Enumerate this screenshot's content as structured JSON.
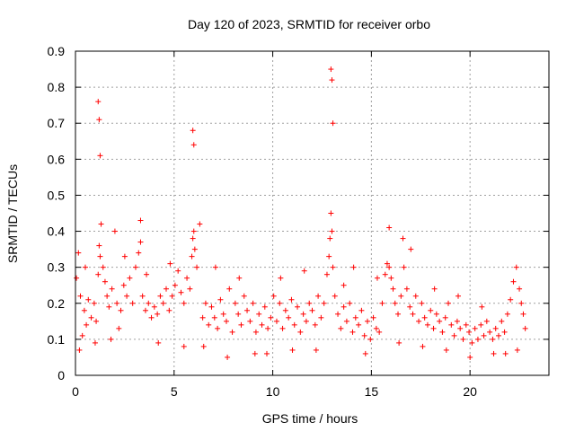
{
  "chart_data": {
    "type": "scatter",
    "title": "Day 120 of 2023, SRMTID for receiver orbo",
    "xlabel": "GPS time / hours",
    "ylabel": "SRMTID / TECUs",
    "xlim": [
      0,
      24
    ],
    "ylim": [
      0,
      0.9
    ],
    "x_ticks": [
      0,
      5,
      10,
      15,
      20
    ],
    "x_tick_labels": [
      "0",
      "5",
      "10",
      "15",
      "20"
    ],
    "y_ticks": [
      0,
      0.1,
      0.2,
      0.3,
      0.4,
      0.5,
      0.6,
      0.7,
      0.8,
      0.9
    ],
    "y_tick_labels": [
      "0",
      "0.1",
      "0.2",
      "0.3",
      "0.4",
      "0.5",
      "0.6",
      "0.7",
      "0.8",
      "0.9"
    ],
    "grid": true,
    "marker": "+",
    "color": "#ff0000",
    "series": [
      {
        "name": "SRMTID",
        "x": [
          0.05,
          0.15,
          0.25,
          0.35,
          0.45,
          0.55,
          0.65,
          0.8,
          0.95,
          1.05,
          1.15,
          1.2,
          1.25,
          1.3,
          1.4,
          1.5,
          1.6,
          1.7,
          1.85,
          2.0,
          2.1,
          2.2,
          2.3,
          2.45,
          2.6,
          2.75,
          2.9,
          3.05,
          3.2,
          3.3,
          3.4,
          3.55,
          3.7,
          3.85,
          4.0,
          4.15,
          4.3,
          4.45,
          4.6,
          4.75,
          4.9,
          5.05,
          5.2,
          5.35,
          5.5,
          5.65,
          5.8,
          5.9,
          5.95,
          6.0,
          6.05,
          6.15,
          6.3,
          6.45,
          6.6,
          6.75,
          6.9,
          7.05,
          7.2,
          7.35,
          7.5,
          7.65,
          7.8,
          7.95,
          8.1,
          8.25,
          8.4,
          8.55,
          8.7,
          8.85,
          9.0,
          9.15,
          9.3,
          9.45,
          9.6,
          9.75,
          9.9,
          10.05,
          10.2,
          10.35,
          10.5,
          10.65,
          10.8,
          10.95,
          11.1,
          11.25,
          11.4,
          11.55,
          11.7,
          11.85,
          12.0,
          12.15,
          12.3,
          12.45,
          12.6,
          12.75,
          12.85,
          12.9,
          12.95,
          13.0,
          13.05,
          13.15,
          13.3,
          13.45,
          13.6,
          13.75,
          13.9,
          14.05,
          14.2,
          14.35,
          14.5,
          14.65,
          14.8,
          14.95,
          15.1,
          15.25,
          15.4,
          15.55,
          15.7,
          15.8,
          15.9,
          16.0,
          16.1,
          16.2,
          16.35,
          16.5,
          16.65,
          16.8,
          16.95,
          17.1,
          17.25,
          17.4,
          17.55,
          17.7,
          17.85,
          18.0,
          18.15,
          18.3,
          18.45,
          18.6,
          18.75,
          18.9,
          19.05,
          19.2,
          19.35,
          19.5,
          19.65,
          19.8,
          19.95,
          20.1,
          20.25,
          20.4,
          20.55,
          20.7,
          20.85,
          21.0,
          21.15,
          21.3,
          21.45,
          21.6,
          21.75,
          21.9,
          22.05,
          22.2,
          22.35,
          22.5,
          22.6,
          22.7,
          22.8,
          1.15,
          1.2,
          1.25,
          5.95,
          6.0,
          12.95,
          13.0,
          13.05,
          3.3,
          15.9,
          16.6,
          0.2,
          0.5,
          1.0,
          1.8,
          2.5,
          3.6,
          4.2,
          4.8,
          5.5,
          6.5,
          7.1,
          7.7,
          8.3,
          9.1,
          9.7,
          10.4,
          11.0,
          11.6,
          12.2,
          13.6,
          14.1,
          14.7,
          15.3,
          16.4,
          17.0,
          17.6,
          18.2,
          18.8,
          19.4,
          20.0,
          20.6,
          21.2,
          21.8,
          22.4
        ],
        "y": [
          0.27,
          0.34,
          0.22,
          0.11,
          0.18,
          0.14,
          0.21,
          0.16,
          0.2,
          0.15,
          0.28,
          0.36,
          0.33,
          0.42,
          0.3,
          0.26,
          0.22,
          0.19,
          0.24,
          0.4,
          0.2,
          0.13,
          0.18,
          0.25,
          0.22,
          0.27,
          0.2,
          0.3,
          0.34,
          0.37,
          0.22,
          0.18,
          0.2,
          0.16,
          0.19,
          0.17,
          0.22,
          0.2,
          0.24,
          0.18,
          0.22,
          0.25,
          0.29,
          0.23,
          0.2,
          0.27,
          0.24,
          0.33,
          0.38,
          0.4,
          0.35,
          0.3,
          0.42,
          0.16,
          0.2,
          0.14,
          0.19,
          0.16,
          0.13,
          0.21,
          0.17,
          0.15,
          0.24,
          0.12,
          0.2,
          0.17,
          0.14,
          0.22,
          0.18,
          0.15,
          0.2,
          0.12,
          0.17,
          0.14,
          0.19,
          0.13,
          0.16,
          0.22,
          0.15,
          0.2,
          0.13,
          0.18,
          0.16,
          0.21,
          0.14,
          0.19,
          0.12,
          0.17,
          0.15,
          0.2,
          0.18,
          0.14,
          0.22,
          0.16,
          0.2,
          0.28,
          0.33,
          0.38,
          0.45,
          0.4,
          0.3,
          0.22,
          0.17,
          0.13,
          0.19,
          0.15,
          0.2,
          0.12,
          0.16,
          0.14,
          0.18,
          0.11,
          0.15,
          0.1,
          0.16,
          0.13,
          0.12,
          0.2,
          0.28,
          0.31,
          0.3,
          0.27,
          0.24,
          0.2,
          0.17,
          0.22,
          0.3,
          0.24,
          0.19,
          0.17,
          0.22,
          0.15,
          0.2,
          0.16,
          0.14,
          0.18,
          0.13,
          0.17,
          0.15,
          0.12,
          0.16,
          0.2,
          0.14,
          0.11,
          0.15,
          0.13,
          0.1,
          0.14,
          0.12,
          0.09,
          0.13,
          0.1,
          0.14,
          0.11,
          0.15,
          0.12,
          0.1,
          0.13,
          0.11,
          0.15,
          0.12,
          0.17,
          0.21,
          0.26,
          0.3,
          0.24,
          0.2,
          0.17,
          0.13,
          0.76,
          0.71,
          0.61,
          0.68,
          0.64,
          0.85,
          0.82,
          0.7,
          0.43,
          0.41,
          0.38,
          0.07,
          0.3,
          0.09,
          0.1,
          0.33,
          0.28,
          0.09,
          0.31,
          0.08,
          0.08,
          0.3,
          0.05,
          0.27,
          0.06,
          0.06,
          0.27,
          0.07,
          0.29,
          0.07,
          0.25,
          0.3,
          0.06,
          0.27,
          0.09,
          0.35,
          0.08,
          0.24,
          0.07,
          0.22,
          0.05,
          0.19,
          0.06,
          0.06,
          0.07
        ]
      }
    ]
  }
}
